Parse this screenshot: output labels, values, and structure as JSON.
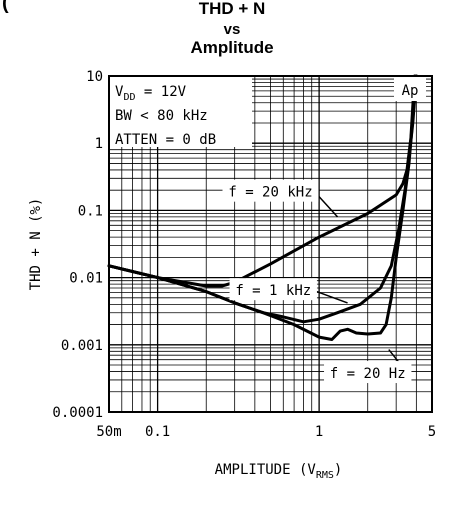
{
  "header_fragment": "(",
  "chart_data": {
    "type": "line",
    "title_lines": [
      "THD + N",
      "vs",
      "Amplitude"
    ],
    "ylabel": "THD + N (%)",
    "xlabel_main": "AMPLITUDE (V",
    "xlabel_sub": "RMS",
    "xlabel_close": ")",
    "xscale": "log",
    "yscale": "log",
    "xlim": [
      0.05,
      5
    ],
    "ylim": [
      0.0001,
      10
    ],
    "x_ticks": [
      {
        "value": 0.05,
        "label": "50m"
      },
      {
        "value": 0.1,
        "label": "0.1"
      },
      {
        "value": 1,
        "label": "1"
      },
      {
        "value": 5,
        "label": "5"
      }
    ],
    "y_ticks": [
      {
        "value": 10,
        "label": "10"
      },
      {
        "value": 1,
        "label": "1"
      },
      {
        "value": 0.1,
        "label": "0.1"
      },
      {
        "value": 0.01,
        "label": "0.01"
      },
      {
        "value": 0.001,
        "label": "0.001"
      },
      {
        "value": 0.0001,
        "label": "0.0001"
      }
    ],
    "grid": true,
    "conditions": [
      {
        "main": "V",
        "sub": "DD",
        "rest": " = 12V"
      },
      {
        "main": "BW < 80 kHz",
        "sub": "",
        "rest": ""
      },
      {
        "main": "ATTEN = 0 dB",
        "sub": "",
        "rest": ""
      }
    ],
    "badge": "Ap",
    "series": [
      {
        "label": "f = 20 kHz",
        "label_anchor": {
          "x": 0.5,
          "y": 0.19
        },
        "pointer_to": {
          "x": 1.3,
          "y": 0.08
        },
        "x": [
          0.05,
          0.1,
          0.2,
          0.25,
          0.3,
          0.5,
          1,
          2,
          3,
          3.3,
          3.5,
          3.7,
          3.9
        ],
        "y": [
          0.015,
          0.01,
          0.0075,
          0.0075,
          0.0085,
          0.016,
          0.04,
          0.09,
          0.17,
          0.25,
          0.4,
          1.2,
          10
        ]
      },
      {
        "label": "f = 1 kHz",
        "label_anchor": {
          "x": 0.52,
          "y": 0.0065
        },
        "pointer_to": {
          "x": 1.5,
          "y": 0.0042
        },
        "x": [
          0.05,
          0.1,
          0.2,
          0.3,
          0.45,
          0.6,
          0.8,
          1,
          1.3,
          1.8,
          2.4,
          2.8,
          3.1,
          3.4,
          3.6,
          3.8,
          4
        ],
        "y": [
          0.015,
          0.01,
          0.0062,
          0.0042,
          0.003,
          0.0026,
          0.0022,
          0.0024,
          0.003,
          0.004,
          0.007,
          0.015,
          0.05,
          0.2,
          0.6,
          2,
          10
        ]
      },
      {
        "label": "f = 20 Hz",
        "label_anchor": {
          "x": 2.0,
          "y": 0.00038
        },
        "pointer_to": {
          "x": 2.7,
          "y": 0.00085
        },
        "x": [
          0.05,
          0.1,
          0.2,
          0.3,
          0.45,
          0.7,
          1,
          1.2,
          1.35,
          1.5,
          1.7,
          2,
          2.4,
          2.6,
          2.8,
          3,
          3.3,
          3.6,
          4
        ],
        "y": [
          0.015,
          0.01,
          0.0062,
          0.0042,
          0.003,
          0.002,
          0.0013,
          0.0012,
          0.0016,
          0.0017,
          0.0015,
          0.00145,
          0.0015,
          0.002,
          0.005,
          0.02,
          0.1,
          0.5,
          10
        ]
      }
    ]
  }
}
